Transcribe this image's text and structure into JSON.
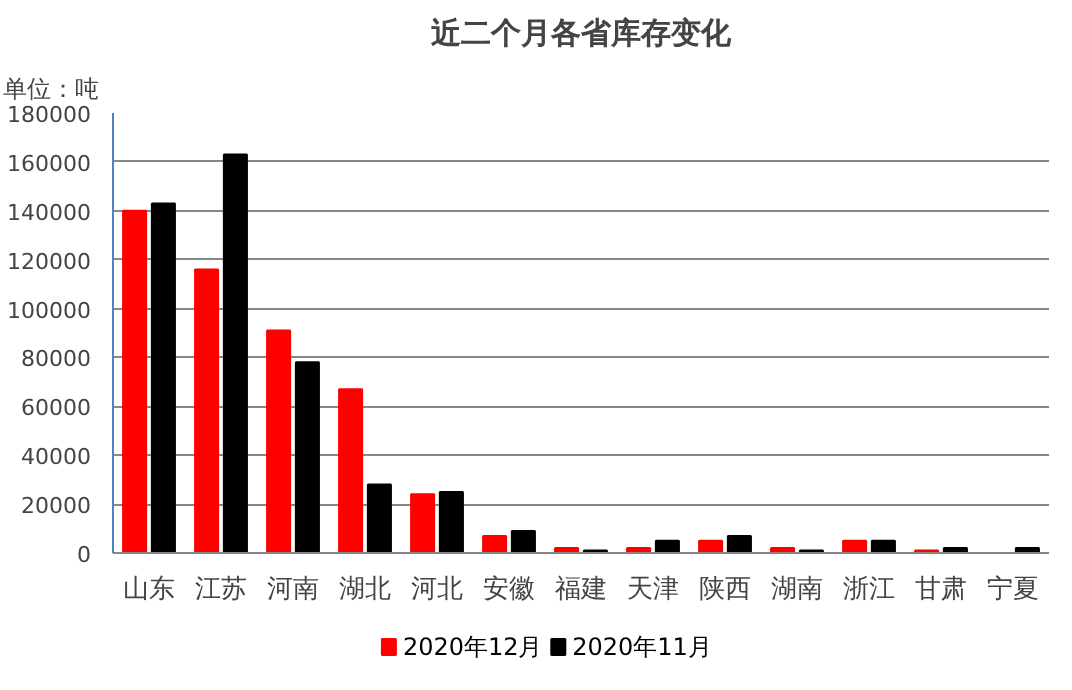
{
  "chart_data": {
    "type": "bar",
    "title": "近二个月各省库存变化",
    "annotations": [
      "单位：吨"
    ],
    "categories": [
      "山东",
      "江苏",
      "河南",
      "湖北",
      "河北",
      "安徽",
      "福建",
      "天津",
      "陕西",
      "湖南",
      "浙江",
      "甘肃",
      "宁夏"
    ],
    "series": [
      {
        "name": "2020年12月",
        "color": "#ff0000",
        "values": [
          140000,
          116000,
          91000,
          67000,
          24000,
          7000,
          2000,
          2000,
          5000,
          2000,
          5000,
          1000,
          0
        ]
      },
      {
        "name": "2020年11月",
        "color": "#000000",
        "values": [
          143000,
          163000,
          78000,
          28000,
          25000,
          9000,
          1000,
          5000,
          7000,
          1000,
          5000,
          2000,
          2000
        ]
      }
    ],
    "ylim": [
      0,
      180000
    ],
    "yticks": [
      0,
      20000,
      40000,
      60000,
      80000,
      100000,
      120000,
      140000,
      160000,
      180000
    ],
    "grid": "y",
    "legend": "bottom"
  }
}
